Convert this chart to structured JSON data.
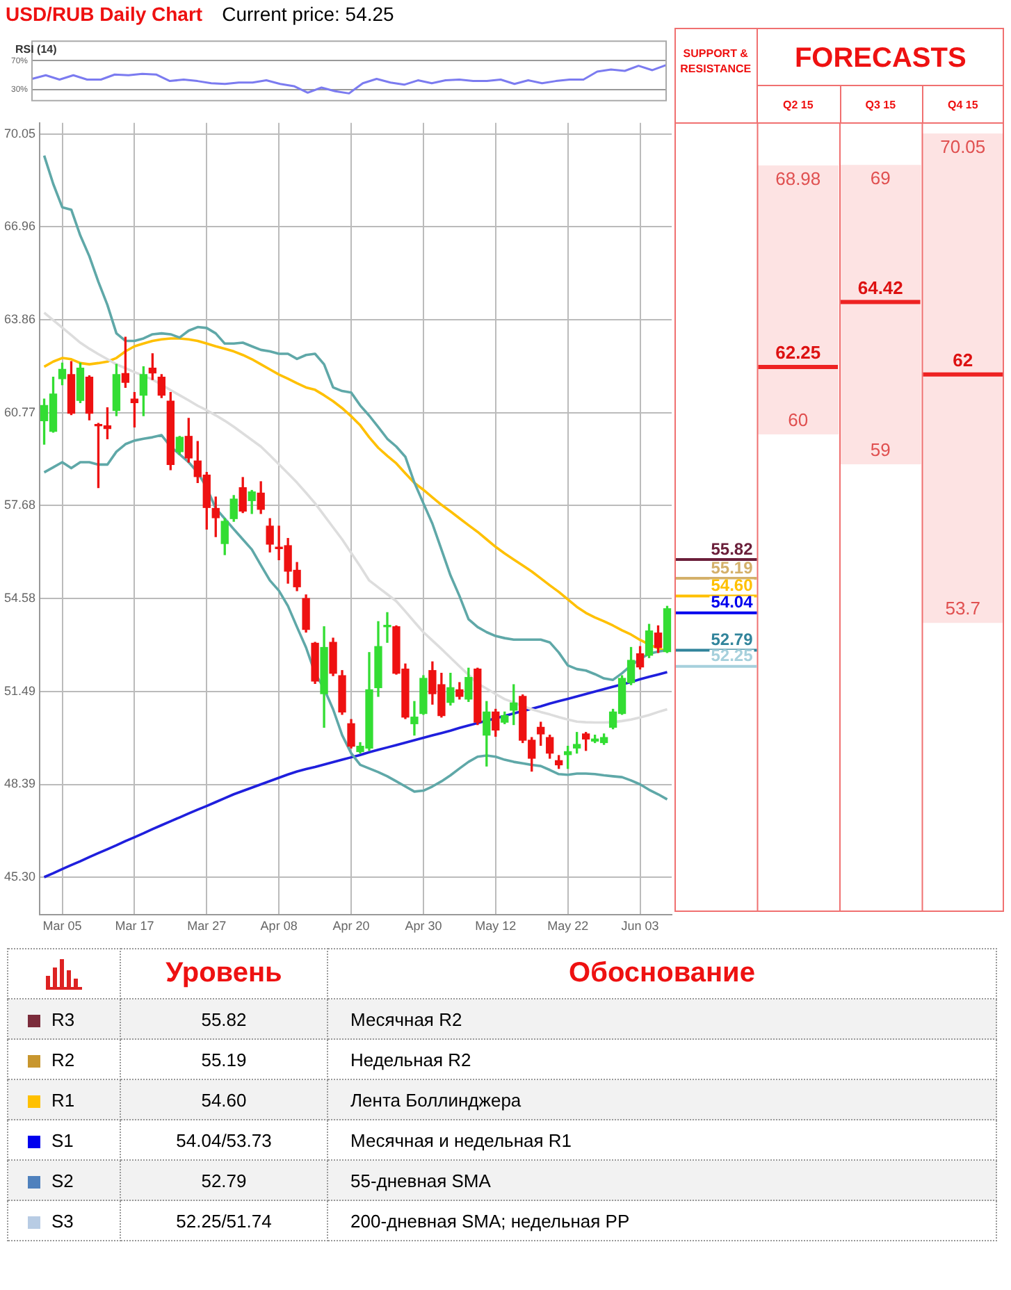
{
  "chart_data": [
    {
      "type": "line",
      "title": "USD/RUB Daily Chart",
      "subtitle": "Current price: 54.25",
      "ylabel": "RSI (14)",
      "categories": [
        null,
        null,
        null,
        null,
        null,
        null,
        null,
        null,
        null,
        null,
        null,
        null,
        null,
        null,
        null,
        null,
        null,
        null,
        null,
        null,
        null,
        null,
        null,
        null,
        null,
        null,
        null,
        null,
        null,
        null,
        null,
        null,
        null,
        null,
        null,
        null,
        null,
        null,
        null,
        null,
        null,
        null,
        null,
        null,
        null,
        null,
        null
      ],
      "series": [
        {
          "color": "#7b7bf0",
          "values": [
            45,
            50,
            44,
            50,
            44,
            44,
            51,
            50,
            52,
            51,
            42,
            44,
            42,
            39,
            38,
            40,
            40,
            43,
            38,
            35,
            26,
            33,
            28,
            25,
            39,
            45,
            40,
            37,
            43,
            39,
            43,
            44,
            42,
            42,
            44,
            38,
            43,
            39,
            42,
            44,
            44,
            55,
            58,
            56,
            63,
            57,
            64
          ]
        }
      ],
      "ylim": [
        15,
        97
      ],
      "yticks": [
        {
          "value": 70,
          "label": "70%"
        },
        {
          "value": 30,
          "label": "30%"
        }
      ],
      "grid": "y",
      "tick_labels": "y"
    },
    {
      "type": "candlestick",
      "categories": [
        null,
        null,
        "Mar 05",
        null,
        null,
        null,
        null,
        null,
        null,
        null,
        "Mar 17",
        null,
        null,
        null,
        null,
        null,
        null,
        null,
        "Mar 27",
        null,
        null,
        null,
        null,
        null,
        null,
        null,
        "Apr 08",
        null,
        null,
        null,
        null,
        null,
        null,
        null,
        "Apr 20",
        null,
        null,
        null,
        null,
        null,
        null,
        null,
        "Apr 30",
        null,
        null,
        null,
        null,
        null,
        null,
        null,
        "May 12",
        null,
        null,
        null,
        null,
        null,
        null,
        null,
        "May 22",
        null,
        null,
        null,
        null,
        null,
        null,
        null,
        "Jun 03",
        null,
        null,
        null
      ],
      "ohlc": [
        [
          60.5,
          61.22,
          59.72,
          61.01
        ],
        [
          60.15,
          61.95,
          60.12,
          61.39
        ],
        [
          61.9,
          62.42,
          61.7,
          62.21
        ],
        [
          62.04,
          62.47,
          60.7,
          60.75
        ],
        [
          61.18,
          62.42,
          61.1,
          62.25
        ],
        [
          61.95,
          62.0,
          60.53,
          60.75
        ],
        [
          60.36,
          60.41,
          58.27,
          60.33
        ],
        [
          60.33,
          60.93,
          59.9,
          60.24
        ],
        [
          60.84,
          62.38,
          60.67,
          62.04
        ],
        [
          62.07,
          63.28,
          61.61,
          61.78
        ],
        [
          61.22,
          61.44,
          60.29,
          61.1
        ],
        [
          61.35,
          62.3,
          60.67,
          62.04
        ],
        [
          62.25,
          62.73,
          61.87,
          62.09
        ],
        [
          61.95,
          62.04,
          61.27,
          61.35
        ],
        [
          61.15,
          61.44,
          58.87,
          59.04
        ],
        [
          59.47,
          59.98,
          59.38,
          59.95
        ],
        [
          59.98,
          60.58,
          59.12,
          59.26
        ],
        [
          59.16,
          59.81,
          58.44,
          58.64
        ],
        [
          58.69,
          58.78,
          56.89,
          57.61
        ],
        [
          57.58,
          57.96,
          56.64,
          57.27
        ],
        [
          56.41,
          57.24,
          56.04,
          57.15
        ],
        [
          57.24,
          58.01,
          57.15,
          57.89
        ],
        [
          58.27,
          58.61,
          57.44,
          57.49
        ],
        [
          57.84,
          58.18,
          57.41,
          58.13
        ],
        [
          58.09,
          58.47,
          57.41,
          57.55
        ],
        [
          56.99,
          57.24,
          56.13,
          56.39
        ],
        [
          56.29,
          56.99,
          55.87,
          56.24
        ],
        [
          56.34,
          56.58,
          55.09,
          55.49
        ],
        [
          55.52,
          55.78,
          54.84,
          54.97
        ],
        [
          54.58,
          54.7,
          53.46,
          53.55
        ],
        [
          53.09,
          53.12,
          51.75,
          51.83
        ],
        [
          51.41,
          53.64,
          50.29,
          52.95
        ],
        [
          53.12,
          53.26,
          52.01,
          52.09
        ],
        [
          52.01,
          52.18,
          50.72,
          50.8
        ],
        [
          50.41,
          50.55,
          49.6,
          49.66
        ],
        [
          49.48,
          49.78,
          49.43,
          49.66
        ],
        [
          49.6,
          52.78,
          49.52,
          51.54
        ],
        [
          51.61,
          53.81,
          51.32,
          52.98
        ],
        [
          53.64,
          54.11,
          53.12,
          53.67
        ],
        [
          53.64,
          53.67,
          52.06,
          52.09
        ],
        [
          52.23,
          52.4,
          50.58,
          50.63
        ],
        [
          50.41,
          51.15,
          50.03,
          50.63
        ],
        [
          50.75,
          52.01,
          50.72,
          51.92
        ],
        [
          52.18,
          52.47,
          51.06,
          51.41
        ],
        [
          51.71,
          52.09,
          50.63,
          50.68
        ],
        [
          51.12,
          52.09,
          51.03,
          51.61
        ],
        [
          51.54,
          51.78,
          51.23,
          51.32
        ],
        [
          51.23,
          52.26,
          51.15,
          51.95
        ],
        [
          52.23,
          52.26,
          50.38,
          50.46
        ],
        [
          50.03,
          51.15,
          49.0,
          50.8
        ],
        [
          50.8,
          50.89,
          49.99,
          50.2
        ],
        [
          50.46,
          50.8,
          50.41,
          50.68
        ],
        [
          50.86,
          51.71,
          50.38,
          51.1
        ],
        [
          51.32,
          51.37,
          49.78,
          49.86
        ],
        [
          49.86,
          49.95,
          48.83,
          49.26
        ],
        [
          50.29,
          50.46,
          49.69,
          50.07
        ],
        [
          49.95,
          50.03,
          49.26,
          49.43
        ],
        [
          49.18,
          49.35,
          48.92,
          49.04
        ],
        [
          49.38,
          49.66,
          48.92,
          49.48
        ],
        [
          49.6,
          50.12,
          49.43,
          49.72
        ],
        [
          50.07,
          50.12,
          49.52,
          49.9
        ],
        [
          49.83,
          50.03,
          49.78,
          49.9
        ],
        [
          49.78,
          50.07,
          49.72,
          49.95
        ],
        [
          50.29,
          50.89,
          50.24,
          50.8
        ],
        [
          50.75,
          52.01,
          50.72,
          51.92
        ],
        [
          51.78,
          52.95,
          51.71,
          52.52
        ],
        [
          52.74,
          52.98,
          52.23,
          52.3
        ],
        [
          52.69,
          53.72,
          52.61,
          53.5
        ],
        [
          53.43,
          53.67,
          52.78,
          52.95
        ],
        [
          52.81,
          54.32,
          52.78,
          54.24
        ]
      ],
      "colors": [
        "#33dd33",
        "#33dd33",
        "#33dd33",
        "#ee1111",
        "#33dd33",
        "#ee1111",
        "#ee1111",
        "#ee1111",
        "#33dd33",
        "#ee1111",
        "#ee1111",
        "#33dd33",
        "#ee1111",
        "#ee1111",
        "#ee1111",
        "#33dd33",
        "#ee1111",
        "#ee1111",
        "#ee1111",
        "#ee1111",
        "#33dd33",
        "#33dd33",
        "#ee1111",
        "#33dd33",
        "#ee1111",
        "#ee1111",
        "#ee1111",
        "#ee1111",
        "#ee1111",
        "#ee1111",
        "#ee1111",
        "#33dd33",
        "#ee1111",
        "#ee1111",
        "#ee1111",
        "#33dd33",
        "#33dd33",
        "#33dd33",
        "#33dd33",
        "#ee1111",
        "#ee1111",
        "#33dd33",
        "#33dd33",
        "#ee1111",
        "#ee1111",
        "#33dd33",
        "#ee1111",
        "#33dd33",
        "#ee1111",
        "#33dd33",
        "#ee1111",
        "#33dd33",
        "#33dd33",
        "#ee1111",
        "#ee1111",
        "#ee1111",
        "#ee1111",
        "#ee1111",
        "#33dd33",
        "#33dd33",
        "#ee1111",
        "#33dd33",
        "#33dd33",
        "#33dd33",
        "#33dd33",
        "#33dd33",
        "#ee1111",
        "#33dd33",
        "#ee1111",
        "#33dd33"
      ],
      "series": [
        {
          "type": "line",
          "color": "#5fa8a8",
          "values": [
            69.33,
            68.39,
            67.61,
            67.53,
            66.67,
            65.98,
            65.13,
            64.36,
            63.41,
            63.16,
            63.16,
            63.24,
            63.38,
            63.41,
            63.38,
            63.27,
            63.5,
            63.62,
            63.59,
            63.41,
            63.07,
            63.07,
            63.1,
            62.98,
            62.86,
            62.81,
            62.73,
            62.73,
            62.56,
            62.69,
            62.73,
            62.38,
            61.61,
            61.49,
            61.44,
            61.01,
            60.67,
            60.29,
            59.9,
            59.64,
            59.3,
            58.44,
            57.75,
            57.07,
            56.21,
            55.35,
            54.66,
            53.89,
            53.63,
            53.46,
            53.33,
            53.26,
            53.21,
            53.21,
            53.21,
            53.21,
            53.12,
            52.78,
            52.35,
            52.23,
            52.18,
            52.06,
            51.92,
            51.87,
            52.09,
            52.35,
            52.57,
            52.74,
            52.81,
            52.86
          ]
        },
        {
          "type": "line",
          "color": "#5fa8a8",
          "values": [
            58.78,
            58.95,
            59.12,
            58.92,
            59.12,
            59.12,
            59.04,
            59.04,
            59.47,
            59.72,
            59.84,
            59.9,
            59.95,
            60.02,
            59.64,
            59.38,
            59.12,
            58.78,
            58.27,
            57.58,
            57.24,
            56.89,
            56.55,
            56.21,
            55.69,
            55.18,
            54.84,
            54.33,
            53.63,
            52.95,
            52.09,
            51.58,
            50.89,
            50.03,
            49.43,
            49.04,
            48.92,
            48.8,
            48.66,
            48.49,
            48.32,
            48.15,
            48.18,
            48.32,
            48.49,
            48.69,
            48.92,
            49.14,
            49.31,
            49.35,
            49.31,
            49.21,
            49.14,
            49.09,
            49.04,
            49.0,
            48.87,
            48.73,
            48.71,
            48.75,
            48.75,
            48.73,
            48.69,
            48.66,
            48.63,
            48.52,
            48.39,
            48.21,
            48.06,
            47.89
          ]
        },
        {
          "type": "line",
          "color": "#dddddd",
          "values": [
            64.1,
            63.85,
            63.6,
            63.35,
            63.1,
            62.9,
            62.72,
            62.55,
            62.38,
            62.25,
            62.12,
            62.0,
            61.87,
            61.7,
            61.52,
            61.35,
            61.18,
            61.0,
            60.85,
            60.68,
            60.5,
            60.3,
            60.08,
            59.86,
            59.64,
            59.35,
            59.05,
            58.75,
            58.44,
            58.1,
            57.75,
            57.35,
            56.95,
            56.55,
            56.1,
            55.65,
            55.18,
            54.95,
            54.72,
            54.49,
            54.15,
            53.8,
            53.46,
            53.18,
            52.9,
            52.61,
            52.32,
            52.04,
            51.75,
            51.58,
            51.4,
            51.23,
            51.12,
            51.0,
            50.89,
            50.8,
            50.72,
            50.63,
            50.55,
            50.48,
            50.46,
            50.45,
            50.45,
            50.46,
            50.5,
            50.55,
            50.62,
            50.7,
            50.8,
            50.89
          ]
        },
        {
          "type": "line",
          "color": "#ffc000",
          "values": [
            62.3,
            62.47,
            62.59,
            62.55,
            62.42,
            62.38,
            62.42,
            62.47,
            62.59,
            62.81,
            62.98,
            63.07,
            63.16,
            63.21,
            63.24,
            63.24,
            63.21,
            63.16,
            63.07,
            62.98,
            62.9,
            62.81,
            62.69,
            62.55,
            62.38,
            62.21,
            62.04,
            61.9,
            61.75,
            61.61,
            61.53,
            61.35,
            61.15,
            60.92,
            60.65,
            60.35,
            59.95,
            59.6,
            59.33,
            59.08,
            58.75,
            58.43,
            58.2,
            57.95,
            57.7,
            57.48,
            57.25,
            57.02,
            56.8,
            56.55,
            56.3,
            56.08,
            55.88,
            55.68,
            55.48,
            55.25,
            55.02,
            54.8,
            54.55,
            54.3,
            54.1,
            53.95,
            53.82,
            53.68,
            53.52,
            53.38,
            53.2,
            53.05,
            52.92,
            52.82
          ]
        },
        {
          "type": "line",
          "color": "#1f1fdd",
          "values": [
            45.3,
            45.43,
            45.57,
            45.7,
            45.83,
            45.97,
            46.1,
            46.23,
            46.36,
            46.5,
            46.63,
            46.76,
            46.9,
            47.03,
            47.16,
            47.29,
            47.42,
            47.55,
            47.67,
            47.8,
            47.93,
            48.06,
            48.17,
            48.28,
            48.39,
            48.5,
            48.61,
            48.72,
            48.82,
            48.9,
            48.97,
            49.05,
            49.13,
            49.21,
            49.29,
            49.37,
            49.46,
            49.54,
            49.62,
            49.7,
            49.78,
            49.86,
            49.94,
            50.02,
            50.1,
            50.18,
            50.27,
            50.35,
            50.43,
            50.51,
            50.59,
            50.67,
            50.75,
            50.83,
            50.91,
            50.99,
            51.08,
            51.16,
            51.24,
            51.32,
            51.4,
            51.48,
            51.56,
            51.64,
            51.72,
            51.8,
            51.89,
            51.97,
            52.05,
            52.13
          ]
        }
      ],
      "ylim": [
        44.05,
        70.42
      ],
      "yticks": [
        70.05,
        66.96,
        63.86,
        60.77,
        57.68,
        54.58,
        51.49,
        48.39,
        {
          "value": 45.3,
          "label": "45.30"
        }
      ],
      "grid": true
    },
    {
      "type": "box",
      "title": "FORECASTS",
      "categories": [
        "Q2 15",
        "Q3 15",
        "Q4 15"
      ],
      "series": [
        {
          "color": "#fde3e3",
          "boxes": [
            {
              "low": 60,
              "q1": 60,
              "median": 62.25,
              "q3": 68.98,
              "high": 68.98
            },
            {
              "low": 59,
              "q1": 59,
              "median": 64.42,
              "q3": 69,
              "high": 69
            },
            {
              "low": 53.7,
              "q1": 53.7,
              "median": 62,
              "q3": 70.05,
              "high": 70.05
            }
          ]
        }
      ],
      "ylim": [
        44.05,
        70.42
      ],
      "tick_labels": "x",
      "grid": "x",
      "ref_lines": [
        {
          "axis": "y",
          "value": 55.82,
          "label": "55.82",
          "color": "#6b1f3a"
        },
        {
          "axis": "y",
          "value": 55.19,
          "label": "55.19",
          "color": "#d4b06a"
        },
        {
          "axis": "y",
          "value": 54.6,
          "label": "54.60",
          "color": "#ffc000"
        },
        {
          "axis": "y",
          "value": 54.04,
          "label": "54.04",
          "color": "#0000ee"
        },
        {
          "axis": "y",
          "value": 52.79,
          "label": "52.79",
          "color": "#31849b"
        },
        {
          "axis": "y",
          "value": 52.25,
          "label": "52.25",
          "color": "#a6d0dc"
        }
      ],
      "annotations": [
        "SUPPORT & RESISTANCE",
        {
          "text": "68.98",
          "x": "Q2 15",
          "y": 68.98
        },
        {
          "text": "62.25",
          "x": "Q2 15",
          "y": 62.25
        },
        {
          "text": "60",
          "x": "Q2 15",
          "y": 60
        },
        {
          "text": "69",
          "x": "Q3 15",
          "y": 69
        },
        {
          "text": "64.42",
          "x": "Q3 15",
          "y": 64.42
        },
        {
          "text": "59",
          "x": "Q3 15",
          "y": 59
        },
        {
          "text": "70.05",
          "x": "Q4 15",
          "y": 70.05
        },
        {
          "text": "62",
          "x": "Q4 15",
          "y": 62
        },
        {
          "text": "53.7",
          "x": "Q4 15",
          "y": 53.7
        }
      ]
    },
    {
      "type": "other",
      "xlabel": "Уровень",
      "ylabel": "Обоснование",
      "categories": [
        "R3",
        "R2",
        "R1",
        "S1",
        "S2",
        "S3"
      ],
      "colors": [
        "#7b2c3b",
        "#c8962e",
        "#ffc000",
        "#0000ee",
        "#4f81bd",
        "#b8cce4"
      ],
      "value_labels": [
        "55.82",
        "55.19",
        "54.60",
        "54.04/53.73",
        "52.79",
        "52.25/51.74"
      ],
      "annotations": [
        "Месячная R2",
        "Недельная R2",
        "Лента Боллинджера",
        "Месячная и недельная R1",
        "55-дневная SMA",
        "200-дневная SMA; недельная PP"
      ]
    }
  ]
}
